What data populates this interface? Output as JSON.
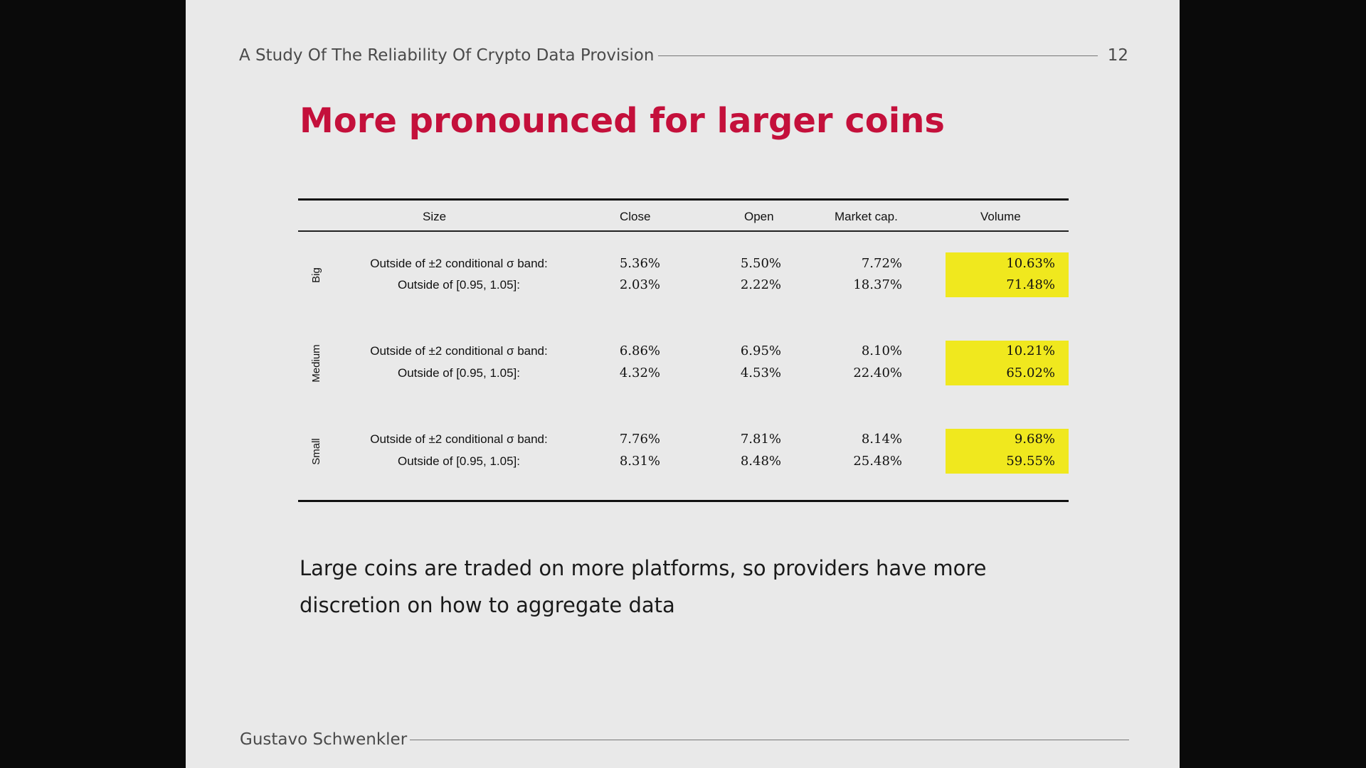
{
  "slide": {
    "header_title": "A Study Of The Reliability Of Crypto Data Provision",
    "page_number": "12",
    "title": "More pronounced for larger coins",
    "footer_author": "Gustavo Schwenkler",
    "body_text": "Large coins are traded on more platforms, so providers have more discretion on how to aggregate data",
    "highlight_color": "#f0e81e",
    "title_color": "#c4103b"
  },
  "table": {
    "headers": {
      "size": "Size",
      "close": "Close",
      "open": "Open",
      "market_cap": "Market cap.",
      "volume": "Volume"
    },
    "groups": [
      {
        "name": "Big",
        "rows": [
          {
            "label": "Outside of ±2 conditional σ band:",
            "close": "5.36%",
            "open": "5.50%",
            "market_cap": "7.72%",
            "volume": "10.63%"
          },
          {
            "label": "Outside of [0.95, 1.05]:",
            "close": "2.03%",
            "open": "2.22%",
            "market_cap": "18.37%",
            "volume": "71.48%"
          }
        ]
      },
      {
        "name": "Medium",
        "rows": [
          {
            "label": "Outside of ±2 conditional σ band:",
            "close": "6.86%",
            "open": "6.95%",
            "market_cap": "8.10%",
            "volume": "10.21%"
          },
          {
            "label": "Outside of [0.95, 1.05]:",
            "close": "4.32%",
            "open": "4.53%",
            "market_cap": "22.40%",
            "volume": "65.02%"
          }
        ]
      },
      {
        "name": "Small",
        "rows": [
          {
            "label": "Outside of ±2 conditional σ band:",
            "close": "7.76%",
            "open": "7.81%",
            "market_cap": "8.14%",
            "volume": "9.68%"
          },
          {
            "label": "Outside of [0.95, 1.05]:",
            "close": "8.31%",
            "open": "8.48%",
            "market_cap": "25.48%",
            "volume": "59.55%"
          }
        ]
      }
    ]
  }
}
